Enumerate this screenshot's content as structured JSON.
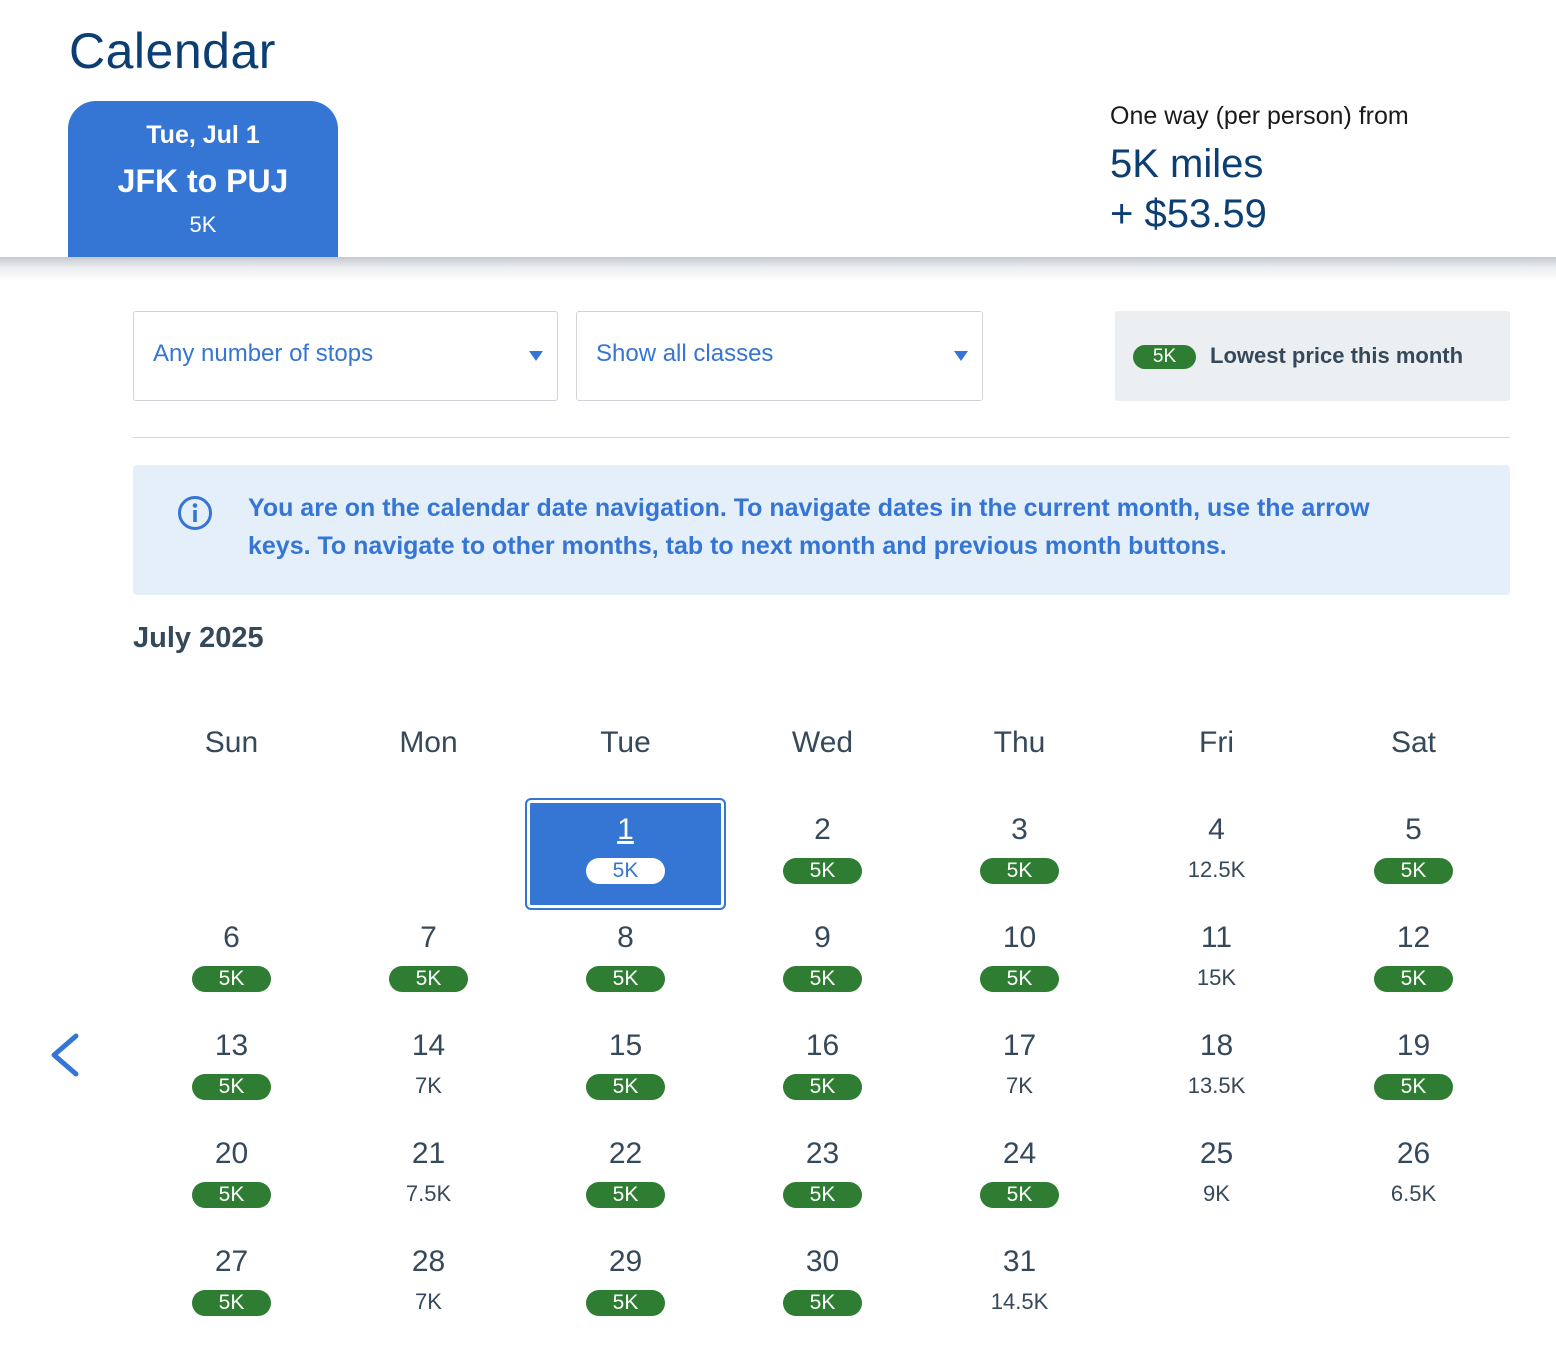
{
  "header": {
    "title": "Calendar",
    "trip": {
      "date": "Tue, Jul 1",
      "route": "JFK to PUJ",
      "price": "5K"
    },
    "fare": {
      "label": "One way (per person) from",
      "miles": "5K miles",
      "taxes": "+ $53.59"
    }
  },
  "filters": {
    "stops": "Any number of stops",
    "classes": "Show all classes"
  },
  "legend": {
    "pill": "5K",
    "text": "Lowest price this month"
  },
  "info": {
    "text": "You are on the calendar date navigation. To navigate dates in the current month, use the arrow keys. To navigate to other months, tab to next month and previous month buttons."
  },
  "calendar": {
    "month": "July 2025",
    "weekdays": [
      "Sun",
      "Mon",
      "Tue",
      "Wed",
      "Thu",
      "Fri",
      "Sat"
    ],
    "first_weekday": 2,
    "selected_day": 1,
    "days": [
      {
        "day": "1",
        "price": "5K",
        "lowest": true
      },
      {
        "day": "2",
        "price": "5K",
        "lowest": true
      },
      {
        "day": "3",
        "price": "5K",
        "lowest": true
      },
      {
        "day": "4",
        "price": "12.5K",
        "lowest": false
      },
      {
        "day": "5",
        "price": "5K",
        "lowest": true
      },
      {
        "day": "6",
        "price": "5K",
        "lowest": true
      },
      {
        "day": "7",
        "price": "5K",
        "lowest": true
      },
      {
        "day": "8",
        "price": "5K",
        "lowest": true
      },
      {
        "day": "9",
        "price": "5K",
        "lowest": true
      },
      {
        "day": "10",
        "price": "5K",
        "lowest": true
      },
      {
        "day": "11",
        "price": "15K",
        "lowest": false
      },
      {
        "day": "12",
        "price": "5K",
        "lowest": true
      },
      {
        "day": "13",
        "price": "5K",
        "lowest": true
      },
      {
        "day": "14",
        "price": "7K",
        "lowest": false
      },
      {
        "day": "15",
        "price": "5K",
        "lowest": true
      },
      {
        "day": "16",
        "price": "5K",
        "lowest": true
      },
      {
        "day": "17",
        "price": "7K",
        "lowest": false
      },
      {
        "day": "18",
        "price": "13.5K",
        "lowest": false
      },
      {
        "day": "19",
        "price": "5K",
        "lowest": true
      },
      {
        "day": "20",
        "price": "5K",
        "lowest": true
      },
      {
        "day": "21",
        "price": "7.5K",
        "lowest": false
      },
      {
        "day": "22",
        "price": "5K",
        "lowest": true
      },
      {
        "day": "23",
        "price": "5K",
        "lowest": true
      },
      {
        "day": "24",
        "price": "5K",
        "lowest": true
      },
      {
        "day": "25",
        "price": "9K",
        "lowest": false
      },
      {
        "day": "26",
        "price": "6.5K",
        "lowest": false
      },
      {
        "day": "27",
        "price": "5K",
        "lowest": true
      },
      {
        "day": "28",
        "price": "7K",
        "lowest": false
      },
      {
        "day": "29",
        "price": "5K",
        "lowest": true
      },
      {
        "day": "30",
        "price": "5K",
        "lowest": true
      },
      {
        "day": "31",
        "price": "14.5K",
        "lowest": false
      }
    ]
  },
  "icons": {
    "info": "info-circle-icon",
    "prev": "chevron-left-icon",
    "caret": "caret-down-icon"
  },
  "colors": {
    "primary": "#3575d3",
    "navy": "#0b3e73",
    "lowest": "#2e7d32",
    "info_bg": "#e4eff9"
  }
}
